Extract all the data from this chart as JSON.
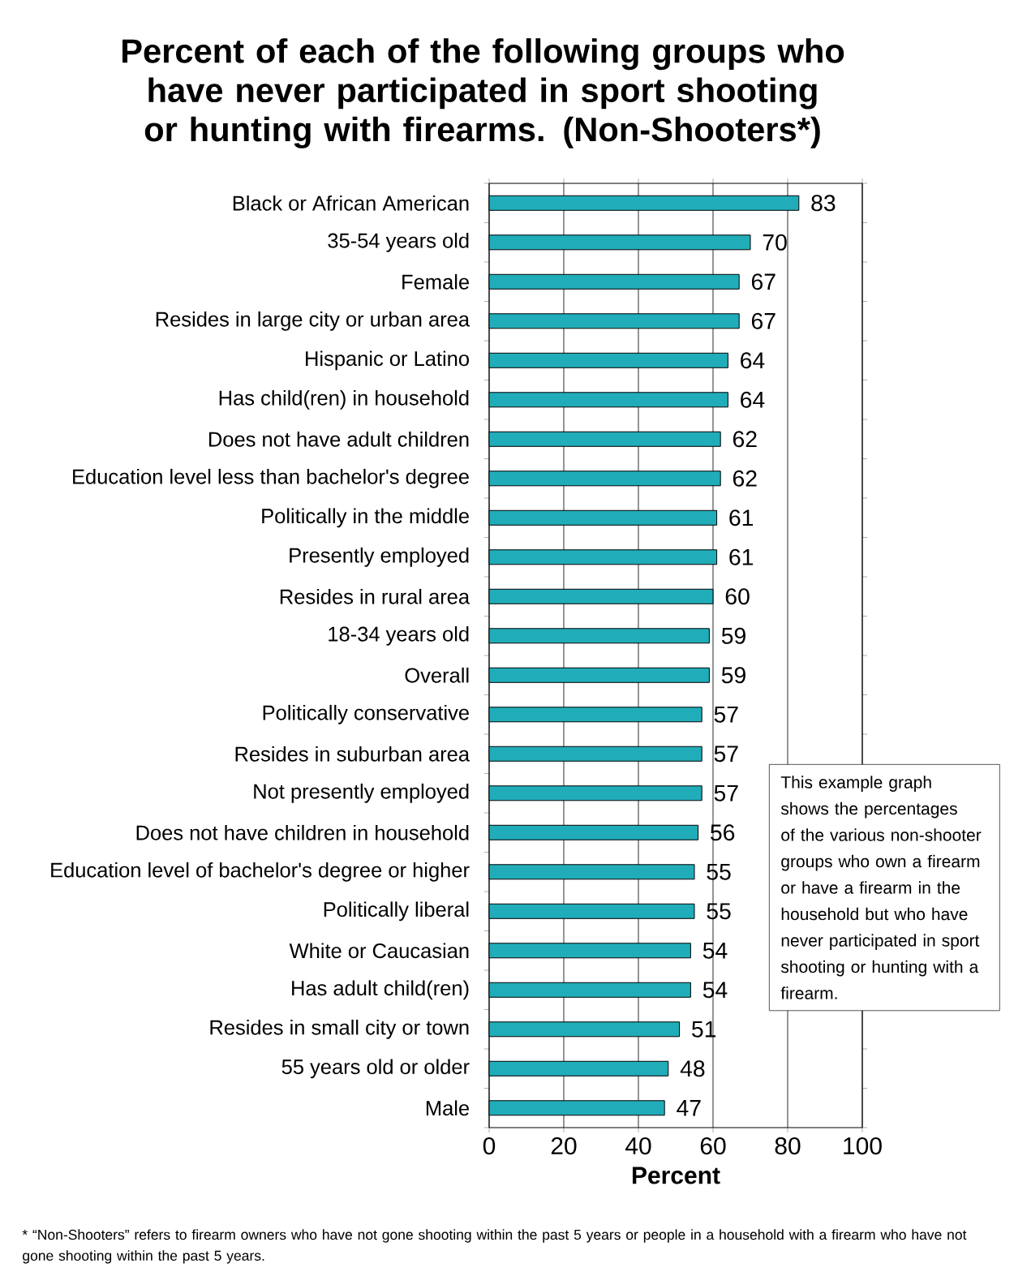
{
  "chart_data": {
    "type": "bar",
    "orientation": "horizontal",
    "title": "Percent of each of the following groups who have never participated in sport shooting or hunting with firearms. (Non-Shooters*)",
    "categories": [
      "Black or African American",
      "35-54 years old",
      "Female",
      "Resides in large city or urban area",
      "Hispanic or Latino",
      "Has child(ren) in household",
      "Does not have adult children",
      "Education level less than bachelor's degree",
      "Politically in the middle",
      "Presently employed",
      "Resides in rural area",
      "18-34 years old",
      "Overall",
      "Politically conservative",
      "Resides in suburban area",
      "Not presently employed",
      "Does not have children in household",
      "Education level of bachelor's degree or higher",
      "Politically liberal",
      "White or Caucasian",
      "Has adult child(ren)",
      "Resides in small city or town",
      "55 years old or older",
      "Male"
    ],
    "values": [
      83,
      70,
      67,
      67,
      64,
      64,
      62,
      62,
      61,
      61,
      60,
      59,
      59,
      57,
      57,
      57,
      56,
      55,
      55,
      54,
      54,
      51,
      48,
      47
    ],
    "color": "#20adb9",
    "data_labels": true,
    "xlabel": "Percent",
    "xlim": [
      0,
      100
    ],
    "xticks": [
      0,
      20,
      40,
      60,
      80,
      100
    ],
    "grid": "x",
    "annotations": [
      "This example graph shows the percentages of the various non-shooter groups who own a firearm or have a firearm in the household but who have never participated in sport shooting or hunting with a firearm.",
      "* “Non-Shooters” refers to firearm owners who have not gone shooting within the past 5 years or people in a household with a firearm who have not gone shooting within the past 5 years."
    ]
  }
}
